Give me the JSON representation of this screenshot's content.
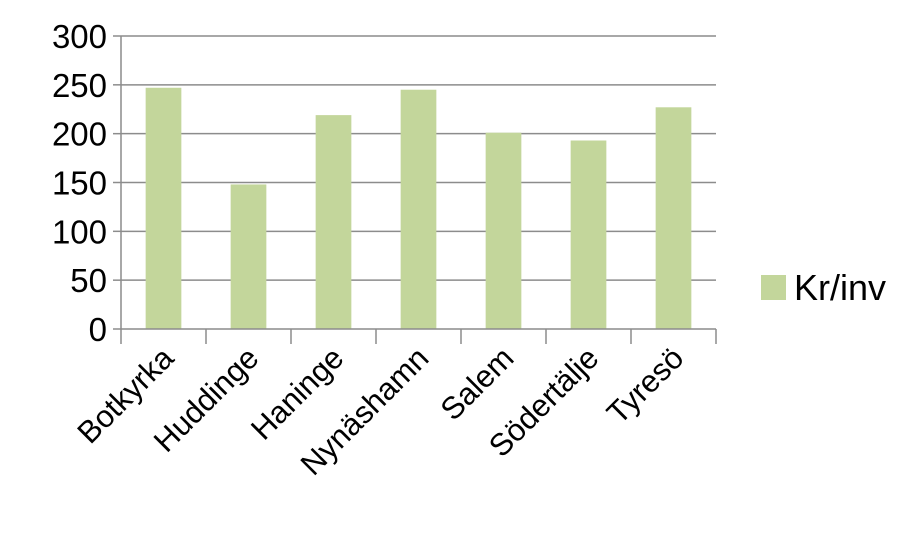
{
  "chart_data": {
    "type": "bar",
    "categories": [
      "Botkyrka",
      "Huddinge",
      "Haninge",
      "Nynäshamn",
      "Salem",
      "Södertälje",
      "Tyresö"
    ],
    "series": [
      {
        "name": "Kr/inv",
        "values": [
          247,
          148,
          219,
          245,
          201,
          193,
          227
        ],
        "color": "#c3d69b"
      }
    ],
    "ylim": [
      0,
      300
    ],
    "yticks": [
      0,
      50,
      100,
      150,
      200,
      250,
      300
    ],
    "grid": true,
    "legend": "right",
    "gridline_color": "#8c8c8c",
    "axis_color": "#8c8c8c"
  }
}
